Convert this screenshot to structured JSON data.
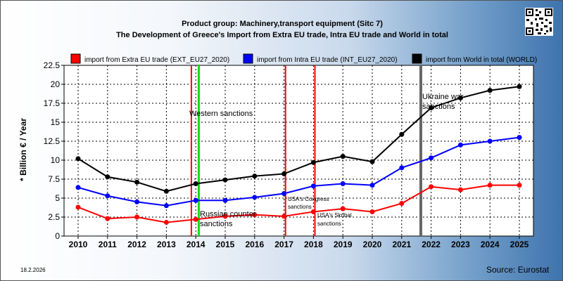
{
  "header": {
    "title_line1": "Product group: Machinery,transport equipment (Sitc 7)",
    "title_line2": "The Development of Greece's Import from Extra EU trade, Intra EU trade and World in total"
  },
  "footer": {
    "date": "18.2.2026",
    "source": "Source: Eurostat"
  },
  "qr_icon": "qr-code-icon",
  "chart_data": {
    "type": "line",
    "ylabel": "* Billion € / Year",
    "xlabel": "",
    "ylim": [
      0,
      22.5
    ],
    "yticks": [
      0,
      2.5,
      5,
      7.5,
      10,
      12.5,
      15,
      17.5,
      20,
      22.5
    ],
    "ytick_labels": [
      "0",
      "2.5",
      "5",
      "7.5",
      "10",
      "12.5",
      "15",
      "17.5",
      "20",
      "22.5"
    ],
    "x": [
      "2010",
      "2011",
      "2012",
      "2013",
      "2014",
      "2015",
      "2016",
      "2017",
      "2018",
      "2019",
      "2020",
      "2021",
      "2022",
      "2023",
      "2024",
      "2025"
    ],
    "grid": true,
    "legend_position": "top",
    "series": [
      {
        "name": "import from Extra EU trade (EXT_EU27_2020)",
        "color": "#ff0000",
        "values": [
          3.8,
          2.3,
          2.5,
          1.8,
          2.2,
          2.6,
          2.8,
          2.6,
          3.2,
          3.6,
          3.2,
          4.3,
          6.5,
          6.1,
          6.7,
          6.7
        ]
      },
      {
        "name": "import from Intra EU trade (INT_EU27_2020)",
        "color": "#0000ff",
        "values": [
          6.4,
          5.3,
          4.5,
          4.0,
          4.7,
          4.7,
          5.1,
          5.6,
          6.6,
          6.9,
          6.7,
          9.0,
          10.3,
          12.0,
          12.5,
          13.0
        ]
      },
      {
        "name": "import from World in total (WORLD)",
        "color": "#000000",
        "values": [
          10.2,
          7.8,
          7.1,
          5.9,
          6.9,
          7.4,
          7.9,
          8.2,
          9.7,
          10.5,
          9.8,
          13.4,
          16.9,
          18.2,
          19.2,
          19.7
        ]
      }
    ],
    "events": [
      {
        "label": "Western sanctions",
        "at": 2013.85,
        "color": "#ff0000",
        "width": 2
      },
      {
        "label": "Russian counter sanctions",
        "at": 2014.1,
        "color": "#00dd00",
        "width": 3
      },
      {
        "label": "USA's Congress sanctions",
        "at": 2017.05,
        "color": "#ff0000",
        "width": 2
      },
      {
        "label": "USA's Skribal sanctions",
        "at": 2018.05,
        "color": "#ff0000",
        "width": 2
      },
      {
        "label": "Ukraine war sanctions",
        "at": 2021.65,
        "color": "#666666",
        "width": 4
      }
    ],
    "event_texts": {
      "western": "Western sanctions",
      "russian_line1": "Russian counter",
      "russian_line2": "sanctions",
      "congress_line1": "USA's Congress",
      "congress_line2": "sanctions",
      "skribal_line1": "USA's Skribal",
      "skribal_line2": "sanctions",
      "ukraine_line1": "Ukraine war",
      "ukraine_line2": "sanctions"
    }
  }
}
